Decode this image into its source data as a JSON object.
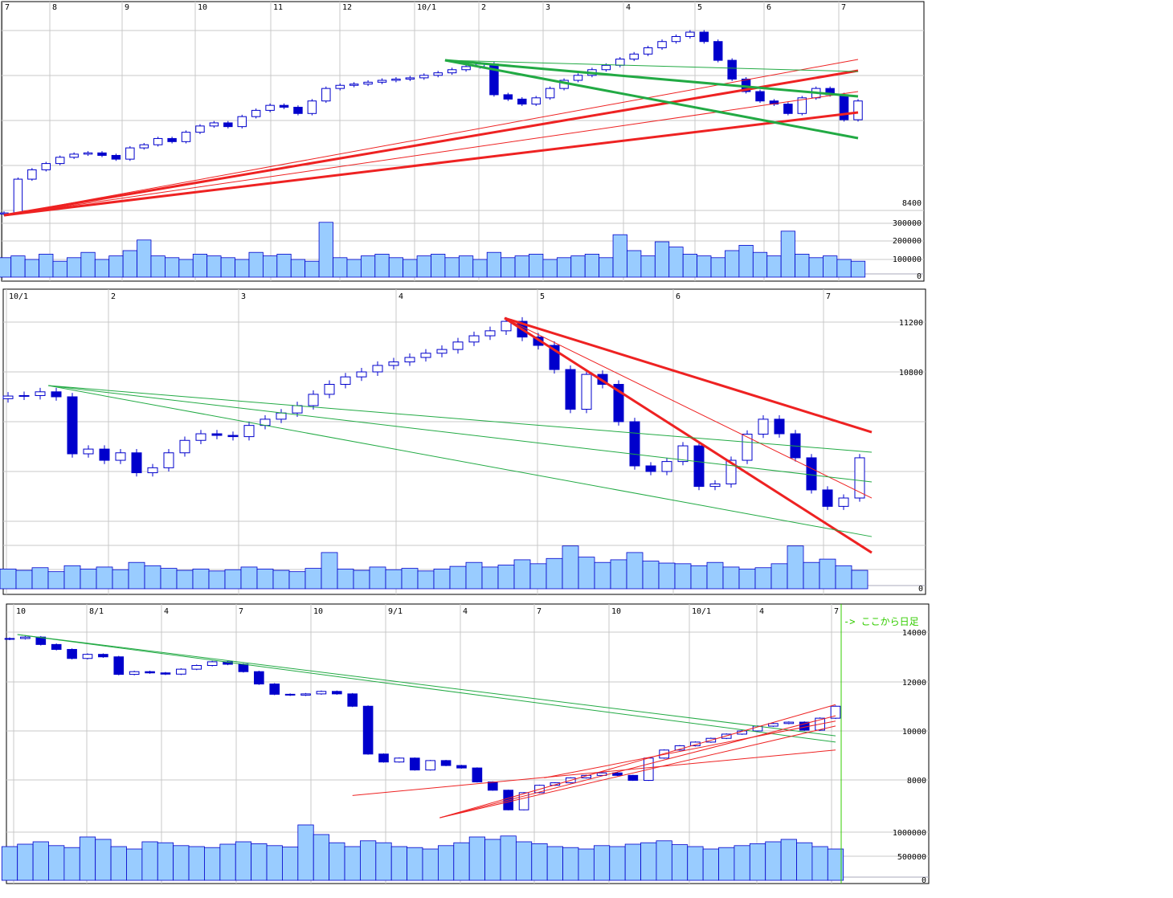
{
  "colors": {
    "candle": "#0000cc",
    "volume_fill": "#99ccff",
    "trend_red": "#ee2222",
    "trend_green": "#22aa44",
    "grid": "#c8c8c8",
    "note": "#33cc00"
  },
  "chart_data": [
    {
      "type": "candlestick",
      "x_tick_labels": [
        "7",
        "8",
        "9",
        "10",
        "11",
        "12",
        "10/1",
        "2",
        "3",
        "4",
        "5",
        "6",
        "7"
      ],
      "price_tick_labels": [
        "8400"
      ],
      "volume_tick_labels": [
        "300000",
        "200000",
        "100000",
        "0"
      ],
      "closes": [
        8360,
        8900,
        9050,
        9150,
        9250,
        9300,
        9320,
        9280,
        9220,
        9400,
        9450,
        9550,
        9500,
        9650,
        9750,
        9800,
        9740,
        9900,
        10000,
        10080,
        10050,
        9950,
        10150,
        10350,
        10400,
        10420,
        10450,
        10480,
        10500,
        10520,
        10560,
        10600,
        10650,
        10700,
        10740,
        10250,
        10180,
        10100,
        10200,
        10350,
        10480,
        10560,
        10650,
        10720,
        10820,
        10900,
        11000,
        11100,
        11180,
        11250,
        11100,
        10800,
        10500,
        10300,
        10150,
        10100,
        9950,
        10200,
        10350,
        10250,
        9850,
        10150
      ],
      "volumes": [
        110000,
        120000,
        100000,
        130000,
        90000,
        110000,
        140000,
        100000,
        120000,
        150000,
        210000,
        120000,
        110000,
        100000,
        130000,
        120000,
        110000,
        100000,
        140000,
        120000,
        130000,
        100000,
        90000,
        310000,
        110000,
        100000,
        120000,
        130000,
        110000,
        100000,
        120000,
        130000,
        110000,
        120000,
        100000,
        140000,
        110000,
        120000,
        130000,
        100000,
        110000,
        120000,
        130000,
        110000,
        240000,
        150000,
        120000,
        200000,
        170000,
        130000,
        120000,
        110000,
        150000,
        180000,
        140000,
        120000,
        260000,
        130000,
        110000,
        120000,
        100000,
        90000
      ],
      "trend_lines": [
        {
          "color": "red",
          "weight": "thick",
          "from": [
            0,
            8323
          ],
          "to": [
            61,
            10634
          ]
        },
        {
          "color": "red",
          "weight": "thick",
          "from": [
            0,
            8323
          ],
          "to": [
            61,
            9966
          ]
        },
        {
          "color": "red",
          "weight": "thin",
          "from": [
            0,
            8323
          ],
          "to": [
            61,
            10814
          ]
        },
        {
          "color": "red",
          "weight": "thin",
          "from": [
            0,
            8323
          ],
          "to": [
            61,
            10300
          ]
        },
        {
          "color": "green",
          "weight": "thick",
          "from": [
            31.5,
            10801
          ],
          "to": [
            61,
            9556
          ]
        },
        {
          "color": "green",
          "weight": "thick",
          "from": [
            31.5,
            10801
          ],
          "to": [
            61,
            10223
          ]
        },
        {
          "color": "green",
          "weight": "thin",
          "from": [
            31.5,
            10801
          ],
          "to": [
            61,
            10620
          ]
        }
      ]
    },
    {
      "type": "candlestick",
      "x_tick_labels": [
        "10/1",
        "2",
        "3",
        "4",
        "5",
        "6",
        "7"
      ],
      "price_tick_labels": [
        "11200",
        "10800"
      ],
      "volume_tick_labels": [
        "0"
      ],
      "closes": [
        10606,
        10610,
        10640,
        10600,
        10142,
        10180,
        10090,
        10150,
        9990,
        10030,
        10150,
        10250,
        10303,
        10290,
        10280,
        10370,
        10420,
        10470,
        10529,
        10620,
        10700,
        10760,
        10800,
        10852,
        10880,
        10916,
        10950,
        10980,
        11040,
        11090,
        11130,
        11206,
        11080,
        11013,
        10819,
        10500,
        10780,
        10700,
        10400,
        10045,
        10000,
        10080,
        10206,
        9880,
        9900,
        10090,
        10300,
        10420,
        10303,
        10110,
        9852,
        9720,
        9787,
        10110
      ],
      "volumes": [
        30,
        28,
        32,
        26,
        35,
        30,
        33,
        29,
        40,
        35,
        31,
        28,
        30,
        27,
        29,
        33,
        30,
        28,
        26,
        31,
        55,
        30,
        28,
        33,
        29,
        31,
        27,
        30,
        34,
        40,
        33,
        36,
        44,
        38,
        46,
        65,
        48,
        40,
        44,
        55,
        42,
        39,
        38,
        35,
        40,
        33,
        30,
        32,
        38,
        65,
        40,
        45,
        35,
        28
      ],
      "trend_lines": [
        {
          "color": "red",
          "weight": "thick",
          "from": [
            30.9,
            11232
          ],
          "to": [
            53.75,
            10316
          ]
        },
        {
          "color": "red",
          "weight": "thick",
          "from": [
            30.9,
            11232
          ],
          "to": [
            53.75,
            9348
          ]
        },
        {
          "color": "red",
          "weight": "thin",
          "from": [
            30.9,
            11232
          ],
          "to": [
            53.75,
            9787
          ]
        },
        {
          "color": "green",
          "weight": "thin",
          "from": [
            2.5,
            10690
          ],
          "to": [
            53.75,
            10155
          ]
        },
        {
          "color": "green",
          "weight": "thin",
          "from": [
            2.5,
            10690
          ],
          "to": [
            53.75,
            9916
          ]
        },
        {
          "color": "green",
          "weight": "thin",
          "from": [
            2.5,
            10690
          ],
          "to": [
            53.75,
            9477
          ]
        }
      ]
    },
    {
      "type": "candlestick",
      "x_tick_labels": [
        "10",
        "8/1",
        "4",
        "7",
        "10",
        "9/1",
        "4",
        "7",
        "10",
        "10/1",
        "4",
        "7"
      ],
      "price_tick_labels": [
        "14000",
        "12000",
        "10000",
        "8000"
      ],
      "volume_tick_labels": [
        "1000000",
        "500000",
        "0"
      ],
      "annotation": "-> ここから日足",
      "closes": [
        13742,
        13800,
        13500,
        13300,
        12935,
        13100,
        13000,
        12290,
        12400,
        12350,
        12300,
        12500,
        12650,
        12800,
        12700,
        12400,
        11900,
        11484,
        11450,
        11500,
        11600,
        11500,
        11000,
        9064,
        8742,
        8900,
        8419,
        8800,
        8600,
        8500,
        7935,
        7600,
        6806,
        7500,
        7800,
        7900,
        8100,
        8200,
        8300,
        8200,
        8000,
        8900,
        9226,
        9400,
        9548,
        9700,
        9871,
        10000,
        10194,
        10300,
        10355,
        10032,
        10516,
        11000
      ],
      "volumes": [
        700000,
        750000,
        800000,
        720000,
        680000,
        900000,
        850000,
        700000,
        650000,
        800000,
        780000,
        720000,
        700000,
        680000,
        750000,
        800000,
        760000,
        720000,
        690000,
        1150000,
        950000,
        780000,
        700000,
        820000,
        780000,
        700000,
        680000,
        650000,
        720000,
        780000,
        900000,
        850000,
        920000,
        800000,
        760000,
        700000,
        680000,
        650000,
        720000,
        700000,
        750000,
        780000,
        820000,
        740000,
        700000,
        650000,
        680000,
        720000,
        760000,
        800000,
        850000,
        780000,
        700000,
        650000
      ],
      "trend_lines": [
        {
          "color": "green",
          "weight": "thin",
          "from": [
            0.5,
            13903
          ],
          "to": [
            53,
            9548
          ]
        },
        {
          "color": "green",
          "weight": "thin",
          "from": [
            0.5,
            13903
          ],
          "to": [
            53,
            9800
          ]
        },
        {
          "color": "red",
          "weight": "thin",
          "from": [
            22,
            7387
          ],
          "to": [
            53,
            9226
          ]
        },
        {
          "color": "red",
          "weight": "thin",
          "from": [
            27.6,
            6484
          ],
          "to": [
            53,
            10613
          ]
        },
        {
          "color": "red",
          "weight": "thin",
          "from": [
            27.6,
            6484
          ],
          "to": [
            53,
            11065
          ]
        },
        {
          "color": "red",
          "weight": "thin",
          "from": [
            34.3,
            8100
          ],
          "to": [
            53,
            10400
          ]
        },
        {
          "color": "red",
          "weight": "thin",
          "from": [
            27.6,
            6484
          ],
          "to": [
            53,
            10200
          ]
        }
      ]
    }
  ]
}
